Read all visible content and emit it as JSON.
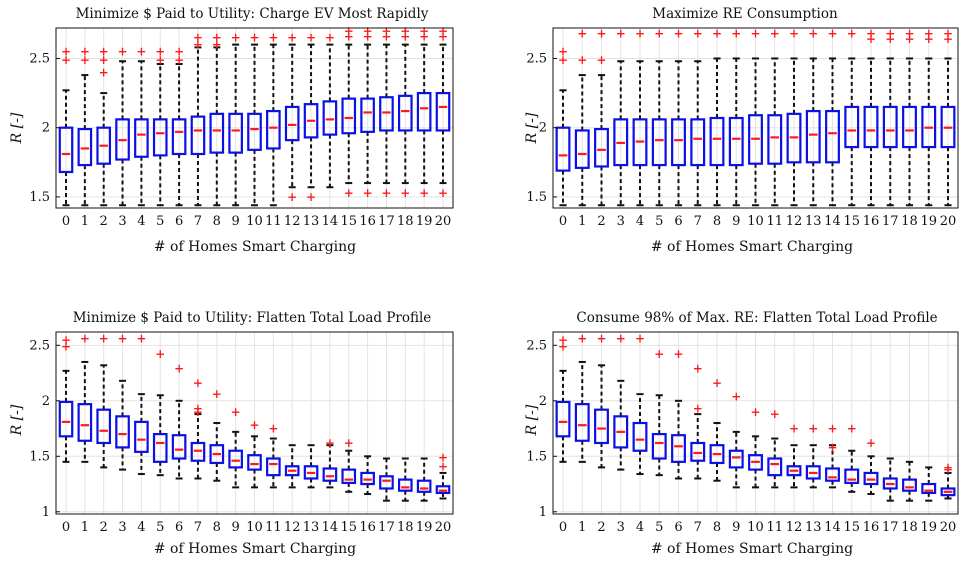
{
  "colors": {
    "box": "#0b11e6",
    "median": "#ff1a1a",
    "outlier": "#ff1a1a",
    "whisker": "#111111",
    "grid": "#e3e3e3",
    "axis": "#111111"
  },
  "chart_data": [
    {
      "type": "box",
      "title": "Minimize $ Paid to Utility: Charge EV Most Rapidly",
      "xlabel": "# of Homes Smart Charging",
      "ylabel": "R [-]",
      "ylim": [
        1.42,
        2.72
      ],
      "yticks": [
        "1.5",
        "2",
        "2.5"
      ],
      "grid": true,
      "categories": [
        "0",
        "1",
        "2",
        "3",
        "4",
        "5",
        "6",
        "7",
        "8",
        "9",
        "10",
        "11",
        "12",
        "13",
        "14",
        "15",
        "16",
        "17",
        "18",
        "19",
        "20"
      ],
      "boxes": [
        {
          "wl": 1.44,
          "q1": 1.68,
          "med": 1.81,
          "q3": 2.0,
          "wh": 2.27,
          "out": [
            2.49,
            2.55
          ]
        },
        {
          "wl": 1.44,
          "q1": 1.73,
          "med": 1.85,
          "q3": 1.99,
          "wh": 2.38,
          "out": [
            2.49,
            2.55
          ]
        },
        {
          "wl": 1.44,
          "q1": 1.74,
          "med": 1.87,
          "q3": 2.0,
          "wh": 2.25,
          "out": [
            2.4,
            2.49,
            2.55
          ]
        },
        {
          "wl": 1.44,
          "q1": 1.77,
          "med": 1.91,
          "q3": 2.06,
          "wh": 2.48,
          "out": [
            2.55
          ]
        },
        {
          "wl": 1.44,
          "q1": 1.79,
          "med": 1.95,
          "q3": 2.06,
          "wh": 2.48,
          "out": [
            2.55
          ]
        },
        {
          "wl": 1.44,
          "q1": 1.8,
          "med": 1.96,
          "q3": 2.06,
          "wh": 2.46,
          "out": [
            2.49,
            2.55
          ]
        },
        {
          "wl": 1.44,
          "q1": 1.81,
          "med": 1.97,
          "q3": 2.06,
          "wh": 2.46,
          "out": [
            2.49,
            2.55
          ]
        },
        {
          "wl": 1.44,
          "q1": 1.81,
          "med": 1.98,
          "q3": 2.08,
          "wh": 2.58,
          "out": [
            2.6,
            2.65
          ]
        },
        {
          "wl": 1.44,
          "q1": 1.82,
          "med": 1.98,
          "q3": 2.1,
          "wh": 2.58,
          "out": [
            2.6,
            2.65
          ]
        },
        {
          "wl": 1.44,
          "q1": 1.82,
          "med": 1.98,
          "q3": 2.1,
          "wh": 2.6,
          "out": [
            2.65
          ]
        },
        {
          "wl": 1.44,
          "q1": 1.84,
          "med": 1.99,
          "q3": 2.1,
          "wh": 2.6,
          "out": [
            2.65
          ]
        },
        {
          "wl": 1.44,
          "q1": 1.85,
          "med": 2.0,
          "q3": 2.12,
          "wh": 2.6,
          "out": [
            2.65
          ]
        },
        {
          "wl": 1.57,
          "q1": 1.91,
          "med": 2.02,
          "q3": 2.15,
          "wh": 2.6,
          "out": [
            1.5,
            2.65
          ]
        },
        {
          "wl": 1.57,
          "q1": 1.93,
          "med": 2.05,
          "q3": 2.17,
          "wh": 2.6,
          "out": [
            1.5,
            2.65
          ]
        },
        {
          "wl": 1.57,
          "q1": 1.95,
          "med": 2.06,
          "q3": 2.19,
          "wh": 2.6,
          "out": [
            2.65
          ]
        },
        {
          "wl": 1.6,
          "q1": 1.96,
          "med": 2.07,
          "q3": 2.21,
          "wh": 2.6,
          "out": [
            1.53,
            2.66,
            2.7
          ]
        },
        {
          "wl": 1.6,
          "q1": 1.97,
          "med": 2.11,
          "q3": 2.21,
          "wh": 2.6,
          "out": [
            1.53,
            2.66,
            2.7
          ]
        },
        {
          "wl": 1.6,
          "q1": 1.98,
          "med": 2.11,
          "q3": 2.22,
          "wh": 2.6,
          "out": [
            1.53,
            2.66,
            2.7
          ]
        },
        {
          "wl": 1.6,
          "q1": 1.98,
          "med": 2.12,
          "q3": 2.23,
          "wh": 2.6,
          "out": [
            1.53,
            2.66,
            2.7
          ]
        },
        {
          "wl": 1.6,
          "q1": 1.98,
          "med": 2.14,
          "q3": 2.25,
          "wh": 2.6,
          "out": [
            1.53,
            2.66,
            2.7
          ]
        },
        {
          "wl": 1.6,
          "q1": 1.98,
          "med": 2.15,
          "q3": 2.25,
          "wh": 2.6,
          "out": [
            1.53,
            2.66,
            2.7
          ]
        }
      ]
    },
    {
      "type": "box",
      "title": "Maximize RE Consumption",
      "xlabel": "# of Homes Smart Charging",
      "ylabel": "R [-]",
      "ylim": [
        1.42,
        2.72
      ],
      "yticks": [
        "1.5",
        "2",
        "2.5"
      ],
      "grid": true,
      "categories": [
        "0",
        "1",
        "2",
        "3",
        "4",
        "5",
        "6",
        "7",
        "8",
        "9",
        "10",
        "11",
        "12",
        "13",
        "14",
        "15",
        "16",
        "17",
        "18",
        "19",
        "20"
      ],
      "boxes": [
        {
          "wl": 1.44,
          "q1": 1.69,
          "med": 1.8,
          "q3": 2.0,
          "wh": 2.27,
          "out": [
            2.49,
            2.55
          ]
        },
        {
          "wl": 1.44,
          "q1": 1.71,
          "med": 1.81,
          "q3": 1.98,
          "wh": 2.38,
          "out": [
            2.49,
            2.68
          ]
        },
        {
          "wl": 1.44,
          "q1": 1.72,
          "med": 1.84,
          "q3": 1.99,
          "wh": 2.38,
          "out": [
            2.49,
            2.68
          ]
        },
        {
          "wl": 1.44,
          "q1": 1.73,
          "med": 1.89,
          "q3": 2.06,
          "wh": 2.48,
          "out": [
            2.68
          ]
        },
        {
          "wl": 1.44,
          "q1": 1.73,
          "med": 1.9,
          "q3": 2.06,
          "wh": 2.48,
          "out": [
            2.68
          ]
        },
        {
          "wl": 1.44,
          "q1": 1.73,
          "med": 1.91,
          "q3": 2.06,
          "wh": 2.48,
          "out": [
            2.68
          ]
        },
        {
          "wl": 1.44,
          "q1": 1.73,
          "med": 1.91,
          "q3": 2.06,
          "wh": 2.48,
          "out": [
            2.68
          ]
        },
        {
          "wl": 1.44,
          "q1": 1.73,
          "med": 1.92,
          "q3": 2.06,
          "wh": 2.48,
          "out": [
            2.68
          ]
        },
        {
          "wl": 1.44,
          "q1": 1.73,
          "med": 1.92,
          "q3": 2.07,
          "wh": 2.5,
          "out": [
            2.68
          ]
        },
        {
          "wl": 1.44,
          "q1": 1.73,
          "med": 1.92,
          "q3": 2.07,
          "wh": 2.5,
          "out": [
            2.68
          ]
        },
        {
          "wl": 1.44,
          "q1": 1.74,
          "med": 1.92,
          "q3": 2.09,
          "wh": 2.5,
          "out": [
            2.68
          ]
        },
        {
          "wl": 1.44,
          "q1": 1.74,
          "med": 1.93,
          "q3": 2.09,
          "wh": 2.5,
          "out": [
            2.68
          ]
        },
        {
          "wl": 1.44,
          "q1": 1.75,
          "med": 1.93,
          "q3": 2.1,
          "wh": 2.5,
          "out": [
            2.68
          ]
        },
        {
          "wl": 1.44,
          "q1": 1.75,
          "med": 1.95,
          "q3": 2.12,
          "wh": 2.5,
          "out": [
            2.68
          ]
        },
        {
          "wl": 1.44,
          "q1": 1.75,
          "med": 1.96,
          "q3": 2.12,
          "wh": 2.5,
          "out": [
            2.68
          ]
        },
        {
          "wl": 1.44,
          "q1": 1.86,
          "med": 1.98,
          "q3": 2.15,
          "wh": 2.5,
          "out": [
            2.68
          ]
        },
        {
          "wl": 1.44,
          "q1": 1.86,
          "med": 1.98,
          "q3": 2.15,
          "wh": 2.5,
          "out": [
            2.64,
            2.68
          ]
        },
        {
          "wl": 1.44,
          "q1": 1.86,
          "med": 1.98,
          "q3": 2.15,
          "wh": 2.5,
          "out": [
            2.64,
            2.68
          ]
        },
        {
          "wl": 1.44,
          "q1": 1.86,
          "med": 1.98,
          "q3": 2.15,
          "wh": 2.5,
          "out": [
            2.64,
            2.68
          ]
        },
        {
          "wl": 1.44,
          "q1": 1.86,
          "med": 2.0,
          "q3": 2.15,
          "wh": 2.5,
          "out": [
            2.64,
            2.68
          ]
        },
        {
          "wl": 1.44,
          "q1": 1.86,
          "med": 2.0,
          "q3": 2.15,
          "wh": 2.5,
          "out": [
            2.64,
            2.68
          ]
        }
      ]
    },
    {
      "type": "box",
      "title": "Minimize $ Paid to Utility: Flatten Total Load Profile",
      "xlabel": "# of Homes Smart Charging",
      "ylabel": "R [-]",
      "ylim": [
        0.98,
        2.62
      ],
      "yticks": [
        "1",
        "1.5",
        "2",
        "2.5"
      ],
      "grid": true,
      "categories": [
        "0",
        "1",
        "2",
        "3",
        "4",
        "5",
        "6",
        "7",
        "8",
        "9",
        "10",
        "11",
        "12",
        "13",
        "14",
        "15",
        "16",
        "17",
        "18",
        "19",
        "20"
      ],
      "boxes": [
        {
          "wl": 1.45,
          "q1": 1.68,
          "med": 1.81,
          "q3": 1.99,
          "wh": 2.27,
          "out": [
            2.49,
            2.55
          ]
        },
        {
          "wl": 1.45,
          "q1": 1.64,
          "med": 1.78,
          "q3": 1.97,
          "wh": 2.35,
          "out": [
            2.56
          ]
        },
        {
          "wl": 1.4,
          "q1": 1.62,
          "med": 1.73,
          "q3": 1.92,
          "wh": 2.32,
          "out": [
            2.56
          ]
        },
        {
          "wl": 1.38,
          "q1": 1.58,
          "med": 1.7,
          "q3": 1.86,
          "wh": 2.18,
          "out": [
            2.56
          ]
        },
        {
          "wl": 1.34,
          "q1": 1.54,
          "med": 1.65,
          "q3": 1.81,
          "wh": 2.06,
          "out": [
            2.56
          ]
        },
        {
          "wl": 1.33,
          "q1": 1.45,
          "med": 1.62,
          "q3": 1.7,
          "wh": 2.05,
          "out": [
            2.42
          ]
        },
        {
          "wl": 1.3,
          "q1": 1.48,
          "med": 1.56,
          "q3": 1.69,
          "wh": 2.0,
          "out": [
            2.29
          ]
        },
        {
          "wl": 1.3,
          "q1": 1.46,
          "med": 1.55,
          "q3": 1.62,
          "wh": 1.88,
          "out": [
            1.9,
            1.93,
            2.16
          ]
        },
        {
          "wl": 1.28,
          "q1": 1.44,
          "med": 1.52,
          "q3": 1.6,
          "wh": 1.8,
          "out": [
            2.06
          ]
        },
        {
          "wl": 1.22,
          "q1": 1.4,
          "med": 1.46,
          "q3": 1.55,
          "wh": 1.72,
          "out": [
            1.9
          ]
        },
        {
          "wl": 1.22,
          "q1": 1.38,
          "med": 1.43,
          "q3": 1.51,
          "wh": 1.68,
          "out": [
            1.78
          ]
        },
        {
          "wl": 1.22,
          "q1": 1.33,
          "med": 1.43,
          "q3": 1.48,
          "wh": 1.66,
          "out": [
            1.75
          ]
        },
        {
          "wl": 1.22,
          "q1": 1.33,
          "med": 1.37,
          "q3": 1.41,
          "wh": 1.6,
          "out": []
        },
        {
          "wl": 1.22,
          "q1": 1.3,
          "med": 1.35,
          "q3": 1.41,
          "wh": 1.6,
          "out": []
        },
        {
          "wl": 1.22,
          "q1": 1.28,
          "med": 1.32,
          "q3": 1.39,
          "wh": 1.6,
          "out": [
            1.62
          ]
        },
        {
          "wl": 1.18,
          "q1": 1.26,
          "med": 1.29,
          "q3": 1.38,
          "wh": 1.55,
          "out": [
            1.62
          ]
        },
        {
          "wl": 1.16,
          "q1": 1.25,
          "med": 1.29,
          "q3": 1.35,
          "wh": 1.5,
          "out": []
        },
        {
          "wl": 1.1,
          "q1": 1.21,
          "med": 1.28,
          "q3": 1.32,
          "wh": 1.48,
          "out": []
        },
        {
          "wl": 1.1,
          "q1": 1.19,
          "med": 1.22,
          "q3": 1.29,
          "wh": 1.48,
          "out": []
        },
        {
          "wl": 1.1,
          "q1": 1.18,
          "med": 1.21,
          "q3": 1.28,
          "wh": 1.48,
          "out": []
        },
        {
          "wl": 1.12,
          "q1": 1.17,
          "med": 1.19,
          "q3": 1.23,
          "wh": 1.35,
          "out": [
            1.41,
            1.49
          ]
        }
      ]
    },
    {
      "type": "box",
      "title": "Consume 98% of Max. RE: Flatten Total Load Profile",
      "xlabel": "# of Homes Smart Charging",
      "ylabel": "R [-]",
      "ylim": [
        0.98,
        2.62
      ],
      "yticks": [
        "1",
        "1.5",
        "2",
        "2.5"
      ],
      "grid": true,
      "categories": [
        "0",
        "1",
        "2",
        "3",
        "4",
        "5",
        "6",
        "7",
        "8",
        "9",
        "10",
        "11",
        "12",
        "13",
        "14",
        "15",
        "16",
        "17",
        "18",
        "19",
        "20"
      ],
      "boxes": [
        {
          "wl": 1.45,
          "q1": 1.68,
          "med": 1.81,
          "q3": 1.99,
          "wh": 2.27,
          "out": [
            2.49,
            2.55
          ]
        },
        {
          "wl": 1.45,
          "q1": 1.64,
          "med": 1.78,
          "q3": 1.97,
          "wh": 2.35,
          "out": [
            2.56
          ]
        },
        {
          "wl": 1.4,
          "q1": 1.62,
          "med": 1.75,
          "q3": 1.92,
          "wh": 2.32,
          "out": [
            2.56
          ]
        },
        {
          "wl": 1.38,
          "q1": 1.58,
          "med": 1.72,
          "q3": 1.86,
          "wh": 2.18,
          "out": [
            2.56
          ]
        },
        {
          "wl": 1.34,
          "q1": 1.55,
          "med": 1.65,
          "q3": 1.8,
          "wh": 2.06,
          "out": [
            2.56
          ]
        },
        {
          "wl": 1.33,
          "q1": 1.48,
          "med": 1.62,
          "q3": 1.7,
          "wh": 2.05,
          "out": [
            2.42
          ]
        },
        {
          "wl": 1.3,
          "q1": 1.45,
          "med": 1.59,
          "q3": 1.69,
          "wh": 2.0,
          "out": [
            2.42
          ]
        },
        {
          "wl": 1.3,
          "q1": 1.46,
          "med": 1.53,
          "q3": 1.62,
          "wh": 1.88,
          "out": [
            1.93,
            2.29
          ]
        },
        {
          "wl": 1.28,
          "q1": 1.44,
          "med": 1.52,
          "q3": 1.6,
          "wh": 1.8,
          "out": [
            2.16
          ]
        },
        {
          "wl": 1.22,
          "q1": 1.4,
          "med": 1.49,
          "q3": 1.55,
          "wh": 1.72,
          "out": [
            2.04
          ]
        },
        {
          "wl": 1.22,
          "q1": 1.38,
          "med": 1.45,
          "q3": 1.51,
          "wh": 1.68,
          "out": [
            1.9
          ]
        },
        {
          "wl": 1.22,
          "q1": 1.33,
          "med": 1.43,
          "q3": 1.48,
          "wh": 1.66,
          "out": [
            1.88
          ]
        },
        {
          "wl": 1.22,
          "q1": 1.33,
          "med": 1.37,
          "q3": 1.41,
          "wh": 1.6,
          "out": [
            1.75
          ]
        },
        {
          "wl": 1.22,
          "q1": 1.3,
          "med": 1.35,
          "q3": 1.41,
          "wh": 1.6,
          "out": [
            1.75
          ]
        },
        {
          "wl": 1.22,
          "q1": 1.28,
          "med": 1.31,
          "q3": 1.39,
          "wh": 1.6,
          "out": [
            1.58,
            1.75
          ]
        },
        {
          "wl": 1.18,
          "q1": 1.26,
          "med": 1.29,
          "q3": 1.38,
          "wh": 1.55,
          "out": [
            1.75
          ]
        },
        {
          "wl": 1.16,
          "q1": 1.25,
          "med": 1.29,
          "q3": 1.35,
          "wh": 1.5,
          "out": [
            1.62
          ]
        },
        {
          "wl": 1.1,
          "q1": 1.21,
          "med": 1.25,
          "q3": 1.3,
          "wh": 1.48,
          "out": []
        },
        {
          "wl": 1.1,
          "q1": 1.19,
          "med": 1.22,
          "q3": 1.29,
          "wh": 1.45,
          "out": []
        },
        {
          "wl": 1.1,
          "q1": 1.17,
          "med": 1.19,
          "q3": 1.25,
          "wh": 1.4,
          "out": []
        },
        {
          "wl": 1.12,
          "q1": 1.15,
          "med": 1.18,
          "q3": 1.21,
          "wh": 1.35,
          "out": [
            1.38,
            1.4
          ]
        }
      ]
    }
  ]
}
